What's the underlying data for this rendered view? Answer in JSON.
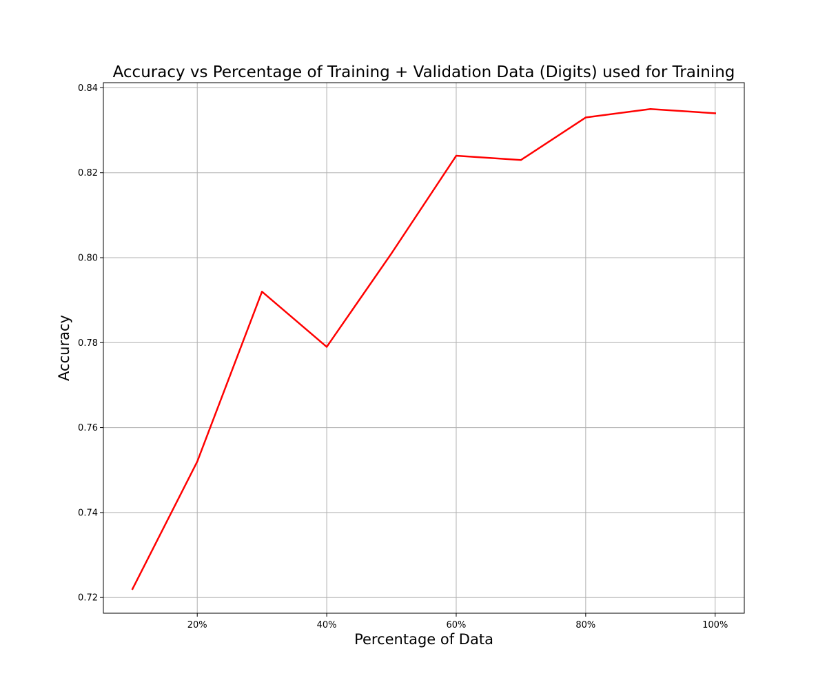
{
  "chart_data": {
    "type": "line",
    "title": "Accuracy vs Percentage of Training + Validation Data (Digits) used for Training",
    "xlabel": "Percentage of Data",
    "ylabel": "Accuracy",
    "x": [
      10,
      20,
      30,
      40,
      50,
      60,
      70,
      80,
      90,
      100
    ],
    "series": [
      {
        "values": [
          0.722,
          0.752,
          0.792,
          0.779,
          0.801,
          0.824,
          0.823,
          0.833,
          0.835,
          0.834
        ],
        "color": "#ff0000"
      }
    ],
    "xlim": [
      5.5,
      104.5
    ],
    "ylim": [
      0.7163,
      0.8412
    ],
    "xticks": [
      20,
      40,
      60,
      80,
      100
    ],
    "xtick_labels": [
      "20%",
      "40%",
      "60%",
      "80%",
      "100%"
    ],
    "yticks": [
      0.72,
      0.74,
      0.76,
      0.78,
      0.8,
      0.82,
      0.84
    ],
    "ytick_labels": [
      "0.72",
      "0.74",
      "0.76",
      "0.78",
      "0.80",
      "0.82",
      "0.84"
    ],
    "grid": true,
    "colors": {
      "grid": "#b0b0b0",
      "axes": "#000000",
      "background": "#ffffff"
    }
  }
}
